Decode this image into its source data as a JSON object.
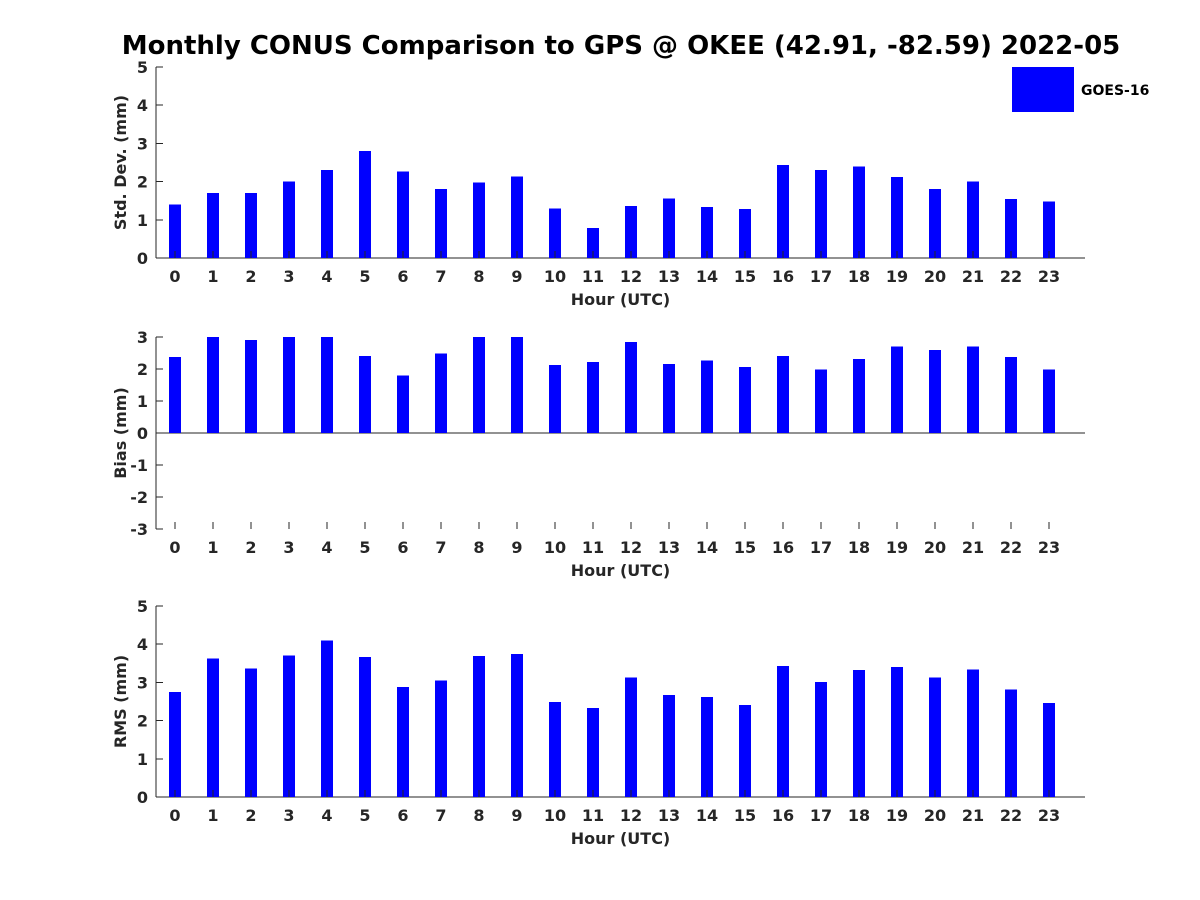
{
  "title": "Monthly CONUS Comparison to GPS @ OKEE (42.91, -82.59) 2022-05",
  "legend": {
    "label": "GOES-16",
    "color": "#0000ff",
    "placement": "top-right"
  },
  "chart_data": [
    {
      "type": "bar",
      "name": "std-dev",
      "xlabel": "Hour (UTC)",
      "ylabel": "Std. Dev. (mm)",
      "ylim": [
        0,
        5
      ],
      "yticks": [
        "0",
        "1",
        "2",
        "3",
        "4",
        "5"
      ],
      "categories": [
        "0",
        "1",
        "2",
        "3",
        "4",
        "5",
        "6",
        "7",
        "8",
        "9",
        "10",
        "11",
        "12",
        "13",
        "14",
        "15",
        "16",
        "17",
        "18",
        "19",
        "20",
        "21",
        "22",
        "23"
      ],
      "series": [
        {
          "name": "GOES-16",
          "values": [
            1.4,
            1.7,
            1.7,
            2.0,
            2.3,
            2.8,
            2.27,
            1.8,
            1.98,
            2.13,
            1.3,
            0.78,
            1.36,
            1.56,
            1.33,
            1.28,
            2.43,
            2.3,
            2.4,
            2.12,
            1.8,
            2.0,
            1.54,
            1.48
          ]
        }
      ]
    },
    {
      "type": "bar",
      "name": "bias",
      "xlabel": "Hour (UTC)",
      "ylabel": "Bias (mm)",
      "ylim": [
        -3,
        3
      ],
      "yticks": [
        "-3",
        "-2",
        "-1",
        "0",
        "1",
        "2",
        "3"
      ],
      "categories": [
        "0",
        "1",
        "2",
        "3",
        "4",
        "5",
        "6",
        "7",
        "8",
        "9",
        "10",
        "11",
        "12",
        "13",
        "14",
        "15",
        "16",
        "17",
        "18",
        "19",
        "20",
        "21",
        "22",
        "23"
      ],
      "series": [
        {
          "name": "GOES-16",
          "values": [
            2.38,
            3.0,
            2.9,
            3.0,
            3.0,
            2.41,
            1.8,
            2.48,
            3.0,
            3.0,
            2.13,
            2.22,
            2.85,
            2.16,
            2.26,
            2.06,
            2.41,
            1.98,
            2.32,
            2.7,
            2.59,
            2.7,
            2.38,
            1.98
          ]
        }
      ]
    },
    {
      "type": "bar",
      "name": "rms",
      "xlabel": "Hour (UTC)",
      "ylabel": "RMS (mm)",
      "ylim": [
        0,
        5
      ],
      "yticks": [
        "0",
        "1",
        "2",
        "3",
        "4",
        "5"
      ],
      "categories": [
        "0",
        "1",
        "2",
        "3",
        "4",
        "5",
        "6",
        "7",
        "8",
        "9",
        "10",
        "11",
        "12",
        "13",
        "14",
        "15",
        "16",
        "17",
        "18",
        "19",
        "20",
        "21",
        "22",
        "23"
      ],
      "series": [
        {
          "name": "GOES-16",
          "values": [
            2.75,
            3.63,
            3.37,
            3.71,
            4.1,
            3.66,
            2.88,
            3.05,
            3.69,
            3.74,
            2.49,
            2.33,
            3.13,
            2.67,
            2.62,
            2.41,
            3.43,
            3.01,
            3.32,
            3.4,
            3.13,
            3.34,
            2.82,
            2.46
          ]
        }
      ]
    }
  ]
}
